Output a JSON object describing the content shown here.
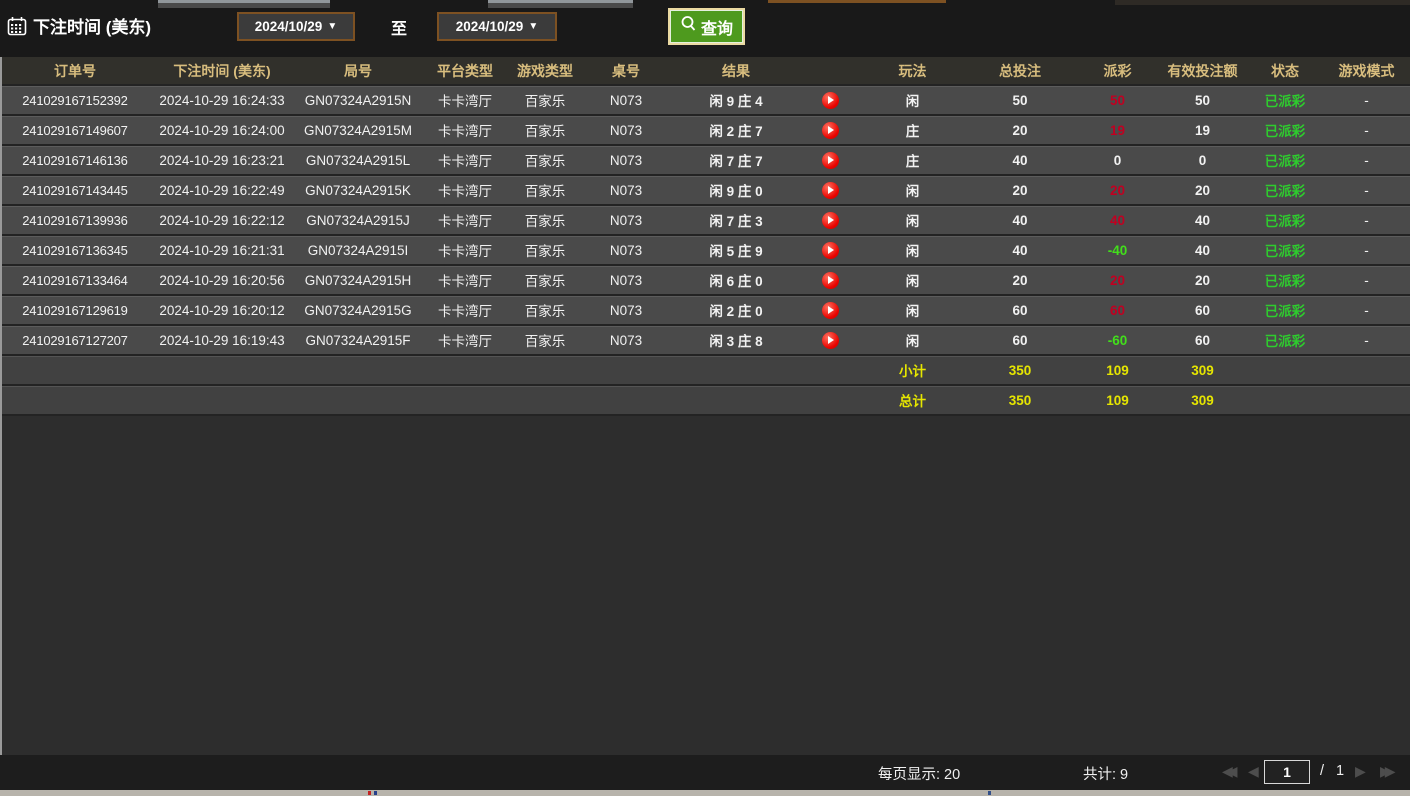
{
  "toolbar": {
    "bet_time_label": "下注时间 (美东)",
    "date_from": "2024/10/29",
    "to_label": "至",
    "date_to": "2024/10/29",
    "query_label": "查询",
    "dropdown_icon": "▼"
  },
  "table": {
    "columns": [
      {
        "key": "order",
        "label": "订单号"
      },
      {
        "key": "time",
        "label": "下注时间 (美东)"
      },
      {
        "key": "round",
        "label": "局号"
      },
      {
        "key": "platform",
        "label": "平台类型"
      },
      {
        "key": "game",
        "label": "游戏类型"
      },
      {
        "key": "table_no",
        "label": "桌号"
      },
      {
        "key": "result",
        "label": "结果"
      },
      {
        "key": "play_icon",
        "label": ""
      },
      {
        "key": "play",
        "label": "玩法"
      },
      {
        "key": "total",
        "label": "总投注"
      },
      {
        "key": "payout",
        "label": "派彩"
      },
      {
        "key": "valid",
        "label": "有效投注额"
      },
      {
        "key": "status",
        "label": "状态"
      },
      {
        "key": "mode",
        "label": "游戏模式"
      }
    ],
    "rows": [
      {
        "order": "241029167152392",
        "time": "2024-10-29 16:24:33",
        "round": "GN07324A2915N",
        "platform": "卡卡湾厅",
        "game": "百家乐",
        "table_no": "N073",
        "result": "闲 9 庄 4",
        "play": "闲",
        "total": "50",
        "payout": "50",
        "payout_class": "win",
        "valid": "50",
        "status": "已派彩",
        "mode": "-"
      },
      {
        "order": "241029167149607",
        "time": "2024-10-29 16:24:00",
        "round": "GN07324A2915M",
        "platform": "卡卡湾厅",
        "game": "百家乐",
        "table_no": "N073",
        "result": "闲 2 庄 7",
        "play": "庄",
        "total": "20",
        "payout": "19",
        "payout_class": "win",
        "valid": "19",
        "status": "已派彩",
        "mode": "-"
      },
      {
        "order": "241029167146136",
        "time": "2024-10-29 16:23:21",
        "round": "GN07324A2915L",
        "platform": "卡卡湾厅",
        "game": "百家乐",
        "table_no": "N073",
        "result": "闲 7 庄 7",
        "play": "庄",
        "total": "40",
        "payout": "0",
        "payout_class": "zero",
        "valid": "0",
        "status": "已派彩",
        "mode": "-"
      },
      {
        "order": "241029167143445",
        "time": "2024-10-29 16:22:49",
        "round": "GN07324A2915K",
        "platform": "卡卡湾厅",
        "game": "百家乐",
        "table_no": "N073",
        "result": "闲 9 庄 0",
        "play": "闲",
        "total": "20",
        "payout": "20",
        "payout_class": "win",
        "valid": "20",
        "status": "已派彩",
        "mode": "-"
      },
      {
        "order": "241029167139936",
        "time": "2024-10-29 16:22:12",
        "round": "GN07324A2915J",
        "platform": "卡卡湾厅",
        "game": "百家乐",
        "table_no": "N073",
        "result": "闲 7 庄 3",
        "play": "闲",
        "total": "40",
        "payout": "40",
        "payout_class": "win",
        "valid": "40",
        "status": "已派彩",
        "mode": "-"
      },
      {
        "order": "241029167136345",
        "time": "2024-10-29 16:21:31",
        "round": "GN07324A2915I",
        "platform": "卡卡湾厅",
        "game": "百家乐",
        "table_no": "N073",
        "result": "闲 5 庄 9",
        "play": "闲",
        "total": "40",
        "payout": "-40",
        "payout_class": "loss",
        "valid": "40",
        "status": "已派彩",
        "mode": "-"
      },
      {
        "order": "241029167133464",
        "time": "2024-10-29 16:20:56",
        "round": "GN07324A2915H",
        "platform": "卡卡湾厅",
        "game": "百家乐",
        "table_no": "N073",
        "result": "闲 6 庄 0",
        "play": "闲",
        "total": "20",
        "payout": "20",
        "payout_class": "win",
        "valid": "20",
        "status": "已派彩",
        "mode": "-"
      },
      {
        "order": "241029167129619",
        "time": "2024-10-29 16:20:12",
        "round": "GN07324A2915G",
        "platform": "卡卡湾厅",
        "game": "百家乐",
        "table_no": "N073",
        "result": "闲 2 庄 0",
        "play": "闲",
        "total": "60",
        "payout": "60",
        "payout_class": "win",
        "valid": "60",
        "status": "已派彩",
        "mode": "-"
      },
      {
        "order": "241029167127207",
        "time": "2024-10-29 16:19:43",
        "round": "GN07324A2915F",
        "platform": "卡卡湾厅",
        "game": "百家乐",
        "table_no": "N073",
        "result": "闲 3 庄 8",
        "play": "闲",
        "total": "60",
        "payout": "-60",
        "payout_class": "loss",
        "valid": "60",
        "status": "已派彩",
        "mode": "-"
      }
    ],
    "subtotal": {
      "label": "小计",
      "total": "350",
      "payout": "109",
      "valid": "309"
    },
    "grand_total": {
      "label": "总计",
      "total": "350",
      "payout": "109",
      "valid": "309"
    }
  },
  "footer": {
    "per_page": "每页显示: 20",
    "total_count": "共计: 9",
    "page": "1",
    "slash": "/",
    "page_total": "1",
    "icons": {
      "first": "◀◀",
      "prev": "◀",
      "next": "▶",
      "last": "▶▶"
    }
  },
  "colors": {
    "header_text": "#d8bd7e",
    "payout_win_red": "#c00021",
    "payout_loss_green": "#42df1b",
    "status_paid_green": "#2ecc2e",
    "totals_yellow": "#e6e600",
    "query_button_green": "#4e9a1e",
    "date_border_brown": "#7d5122",
    "row_background": "#4a4a4a"
  }
}
